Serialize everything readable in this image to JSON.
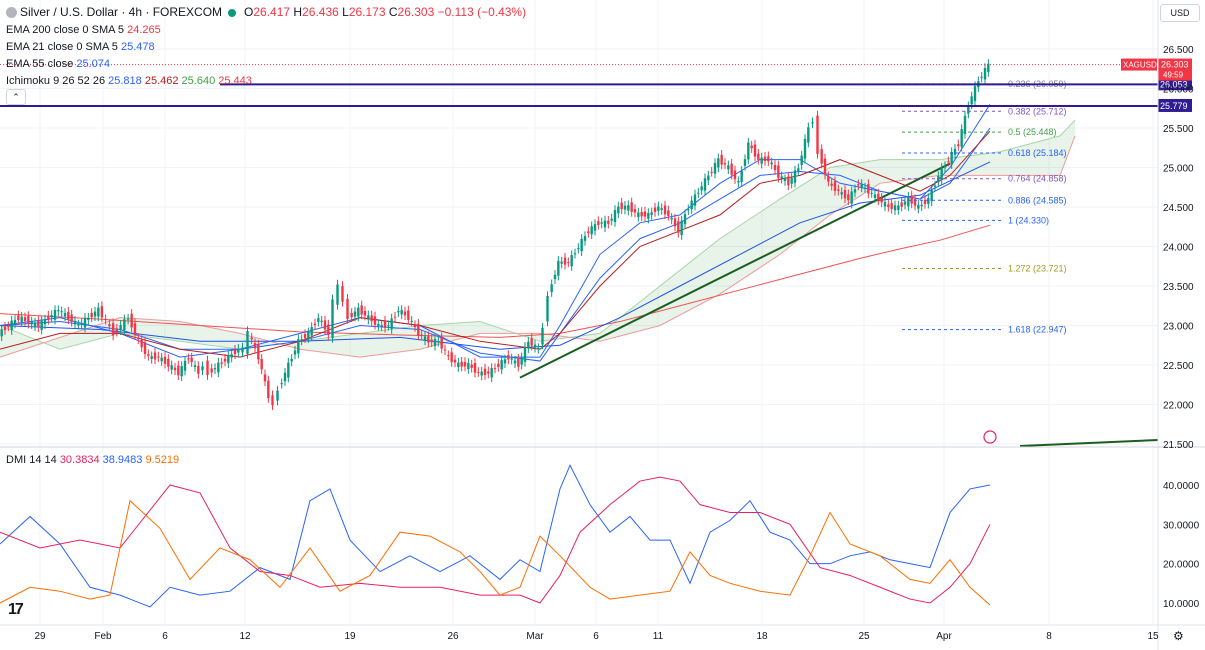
{
  "header": {
    "title": "Silver / U.S. Dollar · 4h · FOREXCOM",
    "ohlc": [
      {
        "k": "O",
        "v": "26.417"
      },
      {
        "k": "H",
        "v": "26.436"
      },
      {
        "k": "L",
        "v": "26.173"
      },
      {
        "k": "C",
        "v": "26.303"
      }
    ],
    "change": "−0.113 (−0.43%)",
    "indicators": [
      {
        "label": "EMA 200 close 0 SMA 5",
        "value": "24.265",
        "color": "#f23645"
      },
      {
        "label": "EMA 21 close 0 SMA 5",
        "value": "25.478",
        "color": "#2962ff"
      },
      {
        "label": "EMA 55 close",
        "value": "25.074",
        "color": "#2962ff"
      },
      {
        "label": "Ichimoku 9 26 52 26",
        "values": [
          {
            "v": "25.818",
            "c": "#2962ff"
          },
          {
            "v": "25.462",
            "c": "#b71c1c"
          },
          {
            "v": "25.640",
            "c": "#43a047"
          },
          {
            "v": "25.443",
            "c": "#f23645"
          }
        ]
      }
    ],
    "dmi": {
      "label": "DMI 14 14",
      "values": [
        {
          "v": "30.3834",
          "c": "#e91e63"
        },
        {
          "v": "38.9483",
          "c": "#2962ff"
        },
        {
          "v": "9.5219",
          "c": "#ff6d00"
        }
      ]
    },
    "currency": "USD",
    "collapse": "⌃",
    "logo": "17",
    "settings_icon": "⚙"
  },
  "chart_data": [
    {
      "type": "line",
      "title": "Silver / U.S. Dollar · 4h · FOREXCOM",
      "xlabel": "",
      "ylabel": "",
      "x_ticks": [
        "29",
        "Feb",
        "6",
        "12",
        "19",
        "26",
        "Mar",
        "6",
        "11",
        "18",
        "25",
        "Apr",
        "8",
        "15"
      ],
      "y_ticks": [
        "26.500",
        "26.000",
        "25.500",
        "25.000",
        "24.500",
        "24.000",
        "23.500",
        "23.000",
        "22.500",
        "22.000",
        "21.500"
      ],
      "ylim": [
        21.5,
        26.6
      ],
      "series": [
        {
          "name": "price_close",
          "color": "#089981",
          "x": [
            0,
            20,
            40,
            60,
            80,
            100,
            115,
            130,
            140,
            150,
            160,
            170,
            180,
            190,
            200,
            205,
            210,
            220,
            230,
            240,
            245,
            250,
            260,
            270,
            275,
            280,
            290,
            300,
            310,
            320,
            330,
            335,
            340,
            345,
            350,
            360,
            370,
            380,
            390,
            400,
            410,
            420,
            430,
            440,
            450,
            460,
            470,
            480,
            490,
            500,
            510,
            520,
            530,
            540,
            545,
            550,
            560,
            570,
            580,
            590,
            600,
            610,
            620,
            630,
            640,
            650,
            660,
            670,
            680,
            690,
            700,
            710,
            720,
            730,
            740,
            750,
            760,
            770,
            780,
            790,
            800,
            810,
            815,
            820,
            830,
            840,
            850,
            860,
            870,
            880,
            890,
            900,
            910,
            920,
            930,
            940,
            950,
            960,
            970,
            980,
            990
          ],
          "y": [
            22.9,
            23.1,
            23.0,
            23.2,
            23.0,
            23.2,
            22.9,
            23.1,
            22.8,
            22.6,
            22.6,
            22.5,
            22.4,
            22.6,
            22.4,
            22.5,
            22.4,
            22.5,
            22.6,
            22.7,
            22.7,
            22.9,
            22.6,
            22.1,
            22.0,
            22.2,
            22.5,
            22.8,
            22.9,
            23.1,
            22.9,
            23.3,
            23.5,
            23.3,
            23.1,
            23.2,
            23.1,
            23.0,
            23.0,
            23.2,
            23.1,
            22.9,
            22.8,
            22.8,
            22.6,
            22.5,
            22.5,
            22.4,
            22.4,
            22.5,
            22.6,
            22.5,
            22.8,
            22.7,
            23.0,
            23.4,
            23.8,
            23.8,
            24.0,
            24.2,
            24.3,
            24.3,
            24.5,
            24.5,
            24.4,
            24.4,
            24.5,
            24.4,
            24.2,
            24.5,
            24.7,
            24.9,
            25.1,
            25.0,
            24.8,
            25.3,
            25.1,
            25.1,
            24.9,
            24.8,
            25.0,
            25.5,
            25.6,
            25.2,
            24.8,
            24.7,
            24.6,
            24.8,
            24.7,
            24.6,
            24.5,
            24.5,
            24.6,
            24.5,
            24.6,
            24.9,
            25.1,
            25.3,
            25.8,
            26.1,
            26.3
          ]
        },
        {
          "name": "ema200",
          "color": "#ef5350",
          "x": [
            0,
            100,
            200,
            300,
            400,
            500,
            560,
            620,
            680,
            740,
            800,
            860,
            900,
            940,
            990
          ],
          "y": [
            23.15,
            23.08,
            23.0,
            22.92,
            22.88,
            22.85,
            22.9,
            23.05,
            23.25,
            23.45,
            23.65,
            23.85,
            23.97,
            24.08,
            24.27
          ]
        },
        {
          "name": "ema21",
          "color": "#2962ff",
          "x": [
            0,
            60,
            120,
            180,
            240,
            300,
            360,
            420,
            480,
            540,
            560,
            600,
            640,
            680,
            720,
            760,
            800,
            840,
            880,
            920,
            950,
            990
          ],
          "y": [
            23.0,
            23.05,
            22.95,
            22.7,
            22.7,
            22.8,
            23.0,
            22.95,
            22.65,
            22.55,
            22.9,
            23.6,
            24.1,
            24.3,
            24.6,
            24.9,
            24.95,
            24.9,
            24.7,
            24.6,
            24.8,
            25.5
          ]
        },
        {
          "name": "ema55",
          "color": "#1e53e5",
          "x": [
            0,
            100,
            200,
            300,
            400,
            500,
            560,
            620,
            680,
            740,
            800,
            860,
            920,
            990
          ],
          "y": [
            23.0,
            22.95,
            22.8,
            22.8,
            22.85,
            22.7,
            22.75,
            23.1,
            23.5,
            23.9,
            24.3,
            24.55,
            24.65,
            25.07
          ]
        },
        {
          "name": "tenkan",
          "color": "#2962ff",
          "x": [
            0,
            60,
            120,
            180,
            240,
            300,
            360,
            420,
            480,
            540,
            560,
            600,
            640,
            680,
            720,
            760,
            800,
            840,
            880,
            920,
            950,
            990
          ],
          "y": [
            23.0,
            23.1,
            22.9,
            22.6,
            22.7,
            22.9,
            23.1,
            23.0,
            22.6,
            22.6,
            23.0,
            23.9,
            24.3,
            24.4,
            24.8,
            25.1,
            25.1,
            24.8,
            24.7,
            24.6,
            25.0,
            25.8
          ]
        },
        {
          "name": "kijun",
          "color": "#b71c1c",
          "x": [
            0,
            60,
            120,
            180,
            240,
            300,
            360,
            420,
            480,
            540,
            560,
            600,
            640,
            680,
            720,
            760,
            800,
            840,
            880,
            920,
            950,
            990
          ],
          "y": [
            22.7,
            22.9,
            22.9,
            22.7,
            22.6,
            22.8,
            23.1,
            23.0,
            22.8,
            22.7,
            22.9,
            23.5,
            24.0,
            24.2,
            24.4,
            24.8,
            24.9,
            25.1,
            24.9,
            24.7,
            24.9,
            25.46
          ]
        },
        {
          "name": "trendline",
          "color": "#1b5e20",
          "x": [
            520,
            950
          ],
          "y": [
            22.34,
            25.05
          ]
        }
      ],
      "levels": [
        {
          "label": "0.236 (26.059)",
          "value": 26.059
        },
        {
          "label": "0.382 (25.712)",
          "value": 25.712,
          "color": "#7e57c2"
        },
        {
          "label": "0.5 (25.448)",
          "value": 25.448,
          "color": "#43a047"
        },
        {
          "label": "0.618 (25.184)",
          "value": 25.184,
          "color": "#2962ff"
        },
        {
          "label": "0.764 (24.858)",
          "value": 24.858,
          "color": "#7e57c2"
        },
        {
          "label": "0.886 (24.585)",
          "value": 24.585,
          "color": "#2962ff"
        },
        {
          "label": "1 (24.330)",
          "value": 24.33,
          "color": "#2962ff"
        },
        {
          "label": "1.272 (23.721)",
          "value": 23.721,
          "color": "#9e9d24"
        },
        {
          "label": "1.618 (22.947)",
          "value": 22.947,
          "color": "#2962ff"
        }
      ],
      "hlines": [
        {
          "label": "26.053",
          "value": 26.053
        },
        {
          "label": "25.779",
          "value": 25.779
        }
      ],
      "price_tags": [
        {
          "label": "XAGUSD",
          "value": "26.303",
          "time": "49:59",
          "color": "#f23645"
        }
      ]
    },
    {
      "type": "line",
      "title": "DMI 14 14",
      "y_ticks": [
        "40.0000",
        "30.0000",
        "20.0000",
        "10.0000"
      ],
      "ylim": [
        5,
        46
      ],
      "series": [
        {
          "name": "+DI",
          "color": "#2962ff",
          "x": [
            0,
            30,
            60,
            90,
            120,
            150,
            170,
            200,
            230,
            260,
            290,
            310,
            330,
            350,
            380,
            410,
            440,
            470,
            500,
            520,
            540,
            560,
            570,
            590,
            610,
            630,
            650,
            670,
            690,
            710,
            730,
            750,
            770,
            790,
            810,
            830,
            850,
            870,
            890,
            910,
            930,
            950,
            970,
            990
          ],
          "y": [
            25,
            32,
            25,
            14,
            12,
            9,
            14,
            12,
            13,
            19,
            16,
            36,
            39,
            26,
            18,
            22,
            18,
            22,
            16,
            21,
            18,
            39,
            45,
            35,
            28,
            32,
            26,
            26,
            15,
            28,
            31,
            36,
            28,
            26,
            20,
            20,
            22,
            23,
            21,
            20,
            19,
            33,
            39,
            40
          ]
        },
        {
          "name": "-DI",
          "color": "#e91e63",
          "x": [
            0,
            40,
            80,
            120,
            170,
            200,
            230,
            260,
            290,
            320,
            360,
            400,
            440,
            480,
            520,
            540,
            560,
            580,
            610,
            640,
            660,
            680,
            700,
            730,
            760,
            790,
            820,
            850,
            880,
            910,
            930,
            950,
            970,
            990
          ],
          "y": [
            28,
            24,
            26,
            24,
            40,
            38,
            24,
            18,
            17,
            14,
            15,
            14,
            14,
            12,
            12,
            10,
            17,
            28,
            35,
            41,
            42,
            41,
            35,
            33,
            33,
            30,
            19,
            17,
            14,
            11,
            10,
            14,
            20,
            30
          ]
        },
        {
          "name": "ADX",
          "color": "#ff6d00",
          "x": [
            0,
            30,
            60,
            90,
            110,
            130,
            160,
            190,
            220,
            250,
            280,
            310,
            340,
            370,
            400,
            430,
            460,
            480,
            500,
            520,
            540,
            560,
            590,
            610,
            640,
            670,
            690,
            710,
            730,
            760,
            790,
            810,
            830,
            850,
            880,
            910,
            930,
            950,
            970,
            990
          ],
          "y": [
            10,
            14,
            13,
            11,
            12,
            36,
            29,
            16,
            24,
            21,
            14,
            24,
            13,
            17,
            28,
            27,
            23,
            18,
            12,
            14,
            27,
            22,
            14,
            11,
            12,
            13,
            23,
            17,
            15,
            13,
            12,
            22,
            33,
            25,
            22,
            16,
            15,
            21,
            14,
            9.5
          ]
        }
      ]
    }
  ]
}
